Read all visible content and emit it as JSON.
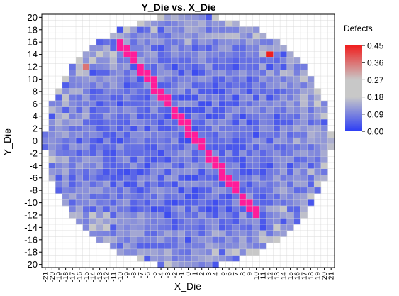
{
  "chart_data": {
    "type": "heatmap",
    "title": "Y_Die vs. X_Die",
    "xlabel": "X_Die",
    "ylabel": "Y_Die",
    "xlim": [
      -21,
      21
    ],
    "ylim": [
      -20,
      20
    ],
    "x_ticks": [
      -21,
      -20,
      -19,
      -18,
      -17,
      -16,
      -15,
      -14,
      -13,
      -12,
      -11,
      -10,
      -9,
      -8,
      -7,
      -6,
      -5,
      -4,
      -3,
      -2,
      -1,
      0,
      1,
      2,
      3,
      4,
      5,
      6,
      7,
      8,
      9,
      10,
      11,
      12,
      13,
      14,
      15,
      16,
      17,
      18,
      19,
      20,
      21
    ],
    "y_ticks": [
      20,
      18,
      16,
      14,
      12,
      10,
      8,
      6,
      4,
      2,
      0,
      -2,
      -4,
      -6,
      -8,
      -10,
      -12,
      -14,
      -16,
      -18,
      -20
    ],
    "grid": true,
    "wafer_radius_dies": 20.5,
    "legend": {
      "title": "Defects",
      "placement": "right",
      "ticks": [
        "0.45",
        "0.36",
        "0.27",
        "0.18",
        "0.09",
        "0.00"
      ],
      "min": 0.0,
      "max": 0.45
    },
    "colors": {
      "low": "#2b3cf5",
      "mid": "#c8c8c8",
      "high": "#f01e1e",
      "highlight_diagonal": "#ff1c9a",
      "grid": "#d6d6d6"
    },
    "highlight_diagonal": {
      "description_label": "",
      "from": [
        -10,
        16
      ],
      "to": [
        10,
        -12
      ]
    },
    "notable_cells": [
      {
        "x": -15,
        "y": 12,
        "value": 0.36
      },
      {
        "x": 12,
        "y": 14,
        "value": 0.45
      },
      {
        "x": -13,
        "y": 14,
        "value": 0.27
      },
      {
        "x": -7,
        "y": -19,
        "value": 0.27
      },
      {
        "x": -4,
        "y": 20,
        "value": 0.27
      },
      {
        "x": 18,
        "y": -14,
        "value": 0.27
      },
      {
        "x": -12,
        "y": -17,
        "value": 0.27
      },
      {
        "x": 9,
        "y": -18,
        "value": 0.27
      }
    ]
  }
}
